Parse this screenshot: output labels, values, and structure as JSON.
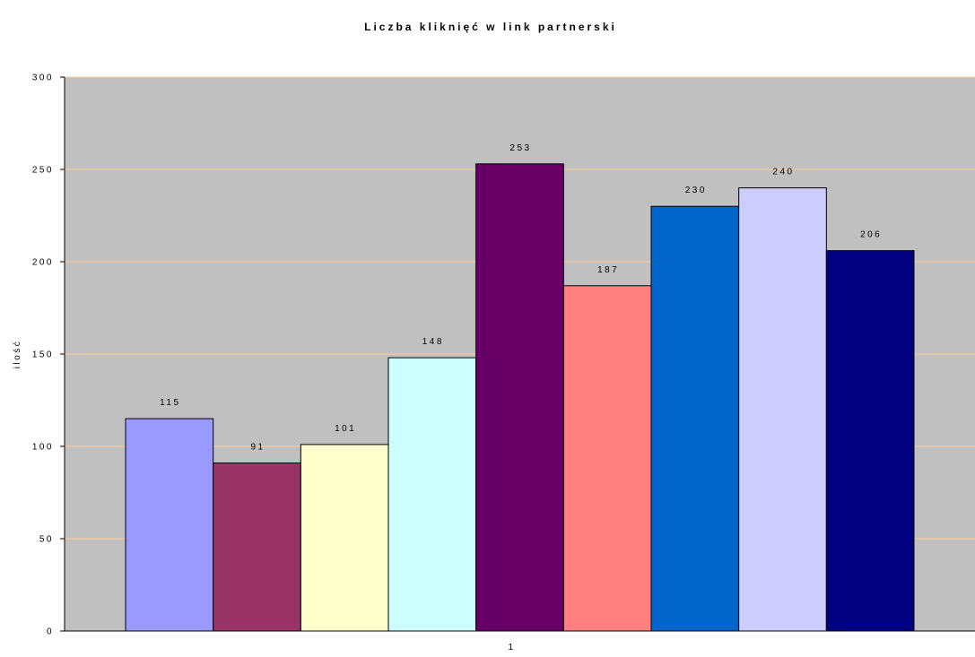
{
  "chart_data": {
    "type": "bar",
    "title": "Liczba kliknięć w link partnerski",
    "xlabel": "",
    "ylabel": "ilość",
    "categories": [
      "1"
    ],
    "series": [
      {
        "values": [
          115
        ],
        "color": "#9999FF"
      },
      {
        "values": [
          91
        ],
        "color": "#993366"
      },
      {
        "values": [
          101
        ],
        "color": "#FFFFCC"
      },
      {
        "values": [
          148
        ],
        "color": "#CCFFFF"
      },
      {
        "values": [
          253
        ],
        "color": "#660066"
      },
      {
        "values": [
          187
        ],
        "color": "#FF8080"
      },
      {
        "values": [
          230
        ],
        "color": "#0066CC"
      },
      {
        "values": [
          240
        ],
        "color": "#CCCCFF"
      },
      {
        "values": [
          206
        ],
        "color": "#000080"
      }
    ],
    "ylim": [
      0,
      300
    ],
    "yticks": [
      0,
      50,
      100,
      150,
      200,
      250,
      300
    ],
    "grid": true,
    "legend": "none",
    "colors": {
      "plot_background": "#C0C0C0",
      "gridline": "#FFCC99",
      "bar_border": "#000000"
    }
  }
}
